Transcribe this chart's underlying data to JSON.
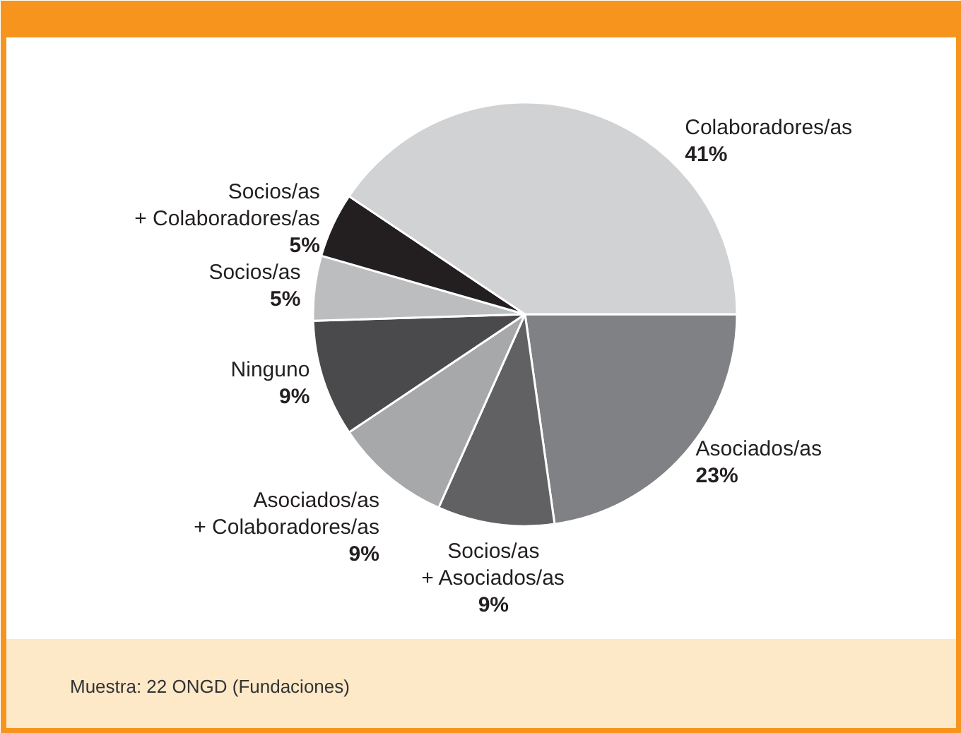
{
  "chart_data": {
    "type": "pie",
    "categories": [
      "Asociados/as",
      "Socios/as + Asociados/as",
      "Asociados/as + Colaboradores/as",
      "Ninguno",
      "Socios/as",
      "Socios/as + Colaboradores/as",
      "Colaboradores/as"
    ],
    "values": [
      23,
      9,
      9,
      9,
      5,
      5,
      41
    ],
    "value_labels": [
      "23%",
      "9%",
      "9%",
      "9%",
      "5%",
      "5%",
      "41%"
    ],
    "colors": [
      "#808184",
      "#616163",
      "#a7a8aa",
      "#4a4a4c",
      "#bcbdbf",
      "#231f20",
      "#d1d2d4"
    ],
    "annotations": [
      "Muestra: 22 ONGD (Fundaciones)"
    ],
    "legend": false
  }
}
